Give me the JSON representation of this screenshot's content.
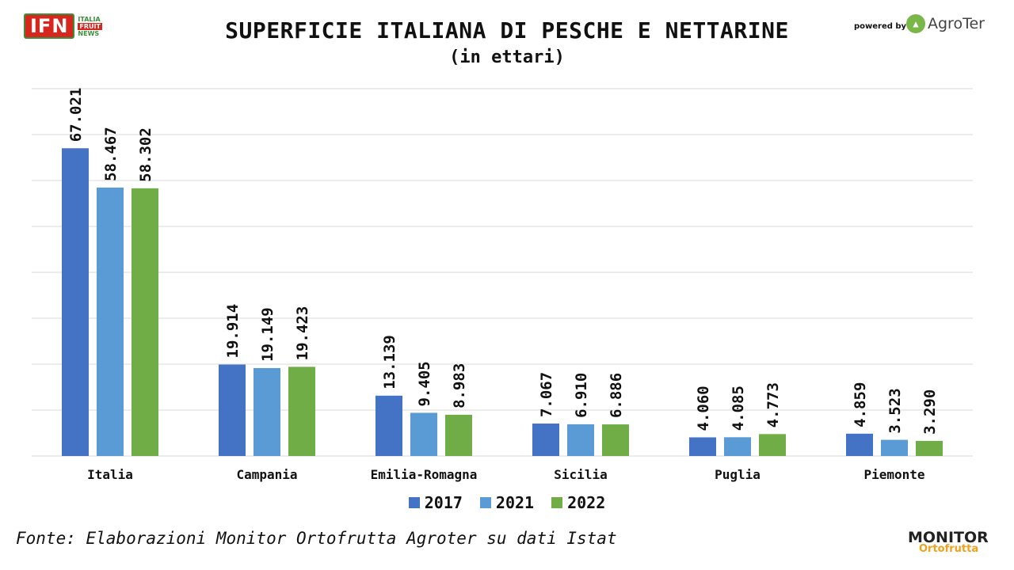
{
  "header": {
    "title": "SUPERFICIE ITALIANA DI PESCHE E NETTARINE",
    "subtitle": "(in ettari)",
    "powered_by": "powered by",
    "ifn_logo": {
      "main": "IFN",
      "line1": "ITALIA",
      "line2": "FRUIT",
      "line3": "NEWS"
    },
    "agroter_logo": "AgroTer"
  },
  "footer": {
    "source": "Fonte: Elaborazioni Monitor Ortofrutta Agroter su dati Istat",
    "monitor_logo_top": "MONITOR",
    "monitor_logo_bottom": "Ortofrutta"
  },
  "colors": {
    "2017": "#4472c4",
    "2021": "#5b9bd5",
    "2022": "#70ad47",
    "grid": "#d9d9d9"
  },
  "chart_data": {
    "type": "bar",
    "title": "SUPERFICIE ITALIANA DI PESCHE E NETTARINE",
    "subtitle": "(in ettari)",
    "categories": [
      "Italia",
      "Campania",
      "Emilia-Romagna",
      "Sicilia",
      "Puglia",
      "Piemonte"
    ],
    "series": [
      {
        "name": "2017",
        "values": [
          67021,
          19914,
          13139,
          7067,
          4060,
          4859
        ],
        "labels": [
          "67.021",
          "19.914",
          "13.139",
          "7.067",
          "4.060",
          "4.859"
        ]
      },
      {
        "name": "2021",
        "values": [
          58467,
          19149,
          9405,
          6910,
          4085,
          3523
        ],
        "labels": [
          "58.467",
          "19.149",
          "9.405",
          "6.910",
          "4.085",
          "3.523"
        ]
      },
      {
        "name": "2022",
        "values": [
          58302,
          19423,
          8983,
          6886,
          4773,
          3290
        ],
        "labels": [
          "58.302",
          "19.423",
          "8.983",
          "6.886",
          "4.773",
          "3.290"
        ]
      }
    ],
    "ylim": [
      0,
      80000
    ],
    "grid": true,
    "legend": "bottom"
  }
}
